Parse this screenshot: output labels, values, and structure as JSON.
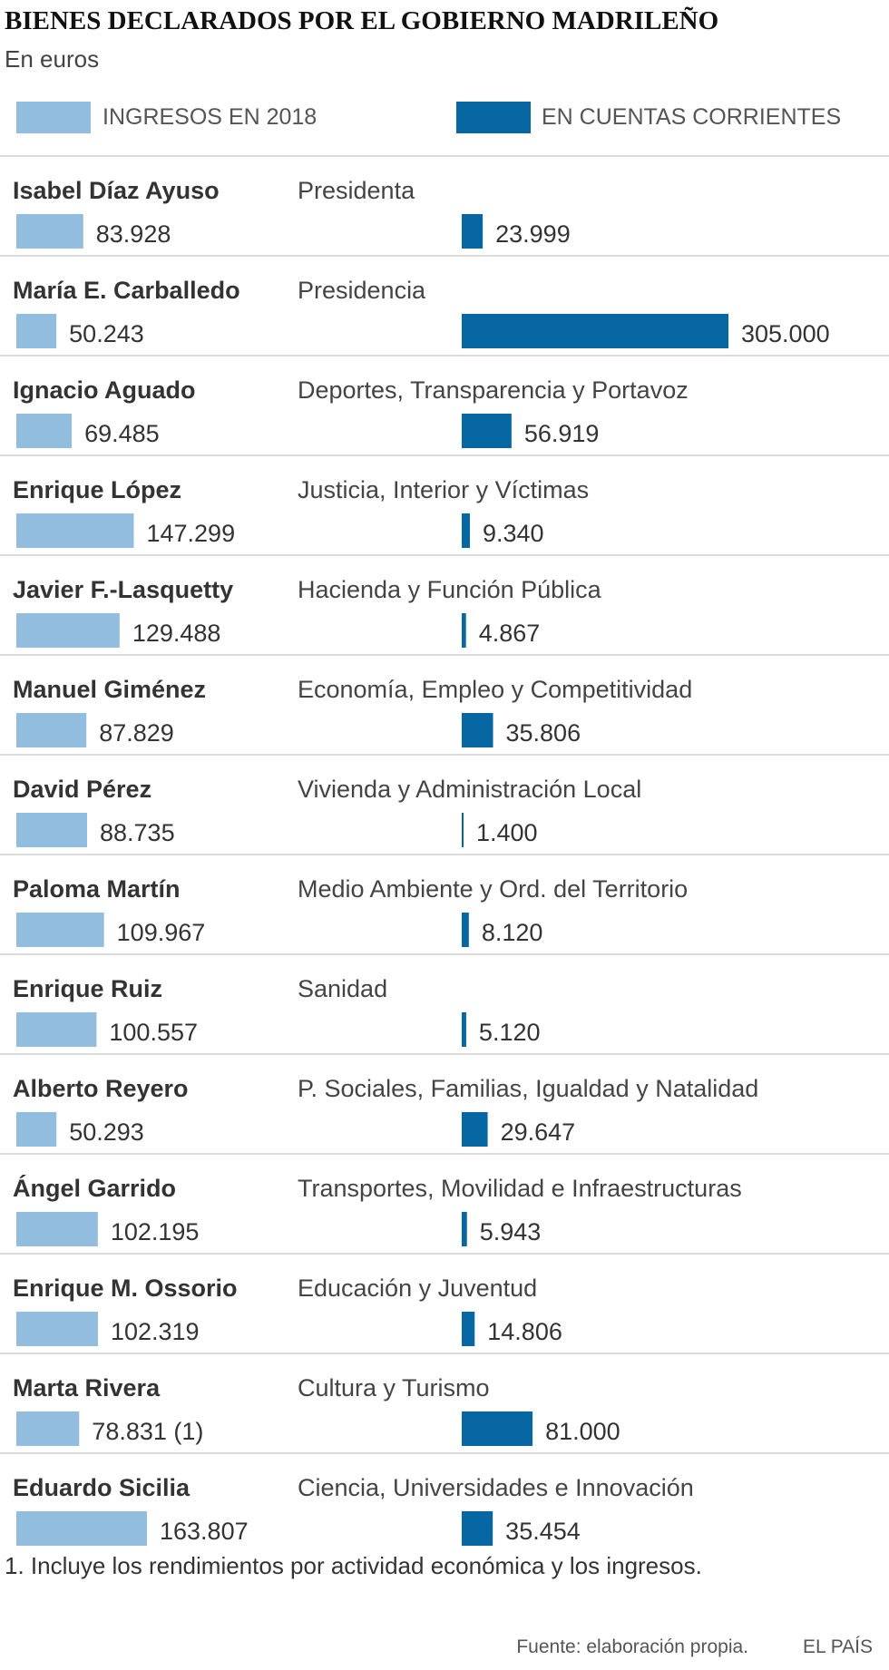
{
  "chart_data": {
    "type": "bar",
    "title": "BIENES DECLARADOS POR EL GOBIERNO MADRILEÑO",
    "subtitle": "En euros",
    "colors": {
      "ingresos": "#93bddf",
      "cuentas": "#0667a3"
    },
    "series": [
      {
        "name": "INGRESOS EN 2018",
        "key": "ingresos"
      },
      {
        "name": "EN CUENTAS CORRIENTES",
        "key": "cuentas"
      }
    ],
    "rows": [
      {
        "name": "Isabel Díaz Ayuso",
        "role": "Presidenta",
        "ingresos": 83928,
        "ingresos_label": "83.928",
        "cuentas": 23999,
        "cuentas_label": "23.999"
      },
      {
        "name": "María E. Carballedo",
        "role": "Presidencia",
        "ingresos": 50243,
        "ingresos_label": "50.243",
        "cuentas": 305000,
        "cuentas_label": "305.000"
      },
      {
        "name": "Ignacio Aguado",
        "role": "Deportes, Transparencia y Portavoz",
        "ingresos": 69485,
        "ingresos_label": "69.485",
        "cuentas": 56919,
        "cuentas_label": "56.919"
      },
      {
        "name": "Enrique López",
        "role": "Justicia, Interior y Víctimas",
        "ingresos": 147299,
        "ingresos_label": "147.299",
        "cuentas": 9340,
        "cuentas_label": "9.340"
      },
      {
        "name": "Javier F.-Lasquetty",
        "role": "Hacienda y Función Pública",
        "ingresos": 129488,
        "ingresos_label": "129.488",
        "cuentas": 4867,
        "cuentas_label": "4.867"
      },
      {
        "name": "Manuel Giménez",
        "role": "Economía, Empleo y Competitividad",
        "ingresos": 87829,
        "ingresos_label": "87.829",
        "cuentas": 35806,
        "cuentas_label": "35.806"
      },
      {
        "name": "David Pérez",
        "role": "Vivienda y Administración Local",
        "ingresos": 88735,
        "ingresos_label": "88.735",
        "cuentas": 1400,
        "cuentas_label": "1.400"
      },
      {
        "name": "Paloma Martín",
        "role": "Medio Ambiente y Ord. del Territorio",
        "ingresos": 109967,
        "ingresos_label": "109.967",
        "cuentas": 8120,
        "cuentas_label": "8.120"
      },
      {
        "name": "Enrique Ruiz",
        "role": "Sanidad",
        "ingresos": 100557,
        "ingresos_label": "100.557",
        "cuentas": 5120,
        "cuentas_label": "5.120"
      },
      {
        "name": "Alberto Reyero",
        "role": "P. Sociales, Familias, Igualdad y Natalidad",
        "ingresos": 50293,
        "ingresos_label": "50.293",
        "cuentas": 29647,
        "cuentas_label": "29.647"
      },
      {
        "name": "Ángel Garrido",
        "role": "Transportes, Movilidad e Infraestructuras",
        "ingresos": 102195,
        "ingresos_label": "102.195",
        "cuentas": 5943,
        "cuentas_label": "5.943"
      },
      {
        "name": "Enrique M. Ossorio",
        "role": "Educación y Juventud",
        "ingresos": 102319,
        "ingresos_label": "102.319",
        "cuentas": 14806,
        "cuentas_label": "14.806"
      },
      {
        "name": "Marta Rivera",
        "role": "Cultura y Turismo",
        "ingresos": 78831,
        "ingresos_label": "78.831 (1)",
        "cuentas": 81000,
        "cuentas_label": "81.000"
      },
      {
        "name": "Eduardo Sicilia",
        "role": "Ciencia, Universidades e Innovación",
        "ingresos": 163807,
        "ingresos_label": "163.807",
        "cuentas": 35454,
        "cuentas_label": "35.454"
      }
    ],
    "footnote": "1. Incluye los rendimientos por actividad económica y los ingresos.",
    "source": "Fuente: elaboración propia.",
    "brand": "EL PAÍS"
  }
}
